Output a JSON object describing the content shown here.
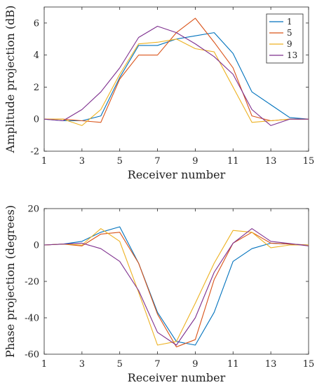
{
  "chart_data": [
    {
      "type": "line",
      "xlabel": "Receiver number",
      "ylabel": "Amplitude projection (dB)",
      "xlim": [
        1,
        15
      ],
      "ylim": [
        -2,
        7
      ],
      "xticks": [
        1,
        3,
        5,
        7,
        9,
        11,
        13,
        15
      ],
      "yticks": [
        -2,
        0,
        2,
        4,
        6
      ],
      "grid": false,
      "legend": "top-right",
      "x": [
        1,
        2,
        3,
        4,
        5,
        6,
        7,
        8,
        9,
        10,
        11,
        12,
        13,
        14,
        15
      ],
      "series": [
        {
          "name": "1",
          "color": "#0072BD",
          "values": [
            0,
            -0.1,
            -0.1,
            0.2,
            2.6,
            4.6,
            4.6,
            5.0,
            5.2,
            5.4,
            4.1,
            1.7,
            0.9,
            0.1,
            0
          ]
        },
        {
          "name": "5",
          "color": "#D95319",
          "values": [
            0,
            0,
            -0.1,
            -0.2,
            2.5,
            4.0,
            4.0,
            5.4,
            6.3,
            4.8,
            3.2,
            0.2,
            -0.1,
            0,
            0
          ]
        },
        {
          "name": "9",
          "color": "#EDB120",
          "values": [
            0,
            0,
            -0.4,
            0.6,
            2.8,
            4.7,
            4.8,
            5.0,
            4.4,
            4.2,
            2.0,
            -0.2,
            -0.1,
            0,
            0
          ]
        },
        {
          "name": "13",
          "color": "#7E2F8E",
          "values": [
            0,
            -0.1,
            0.6,
            1.7,
            3.2,
            5.1,
            5.8,
            5.4,
            4.7,
            3.9,
            2.8,
            0.6,
            -0.4,
            0,
            0
          ]
        }
      ]
    },
    {
      "type": "line",
      "xlabel": "Receiver number",
      "ylabel": "Phase projection (degrees)",
      "xlim": [
        1,
        15
      ],
      "ylim": [
        -60,
        20
      ],
      "xticks": [
        1,
        3,
        5,
        7,
        9,
        11,
        13,
        15
      ],
      "yticks": [
        -60,
        -40,
        -20,
        0,
        20
      ],
      "grid": false,
      "x": [
        1,
        2,
        3,
        4,
        5,
        6,
        7,
        8,
        9,
        10,
        11,
        12,
        13,
        14,
        15
      ],
      "series": [
        {
          "color": "#0072BD",
          "values": [
            0,
            0.5,
            2,
            7,
            10,
            -10,
            -37,
            -53,
            -55,
            -37,
            -9,
            -2,
            1,
            0.5,
            0
          ]
        },
        {
          "color": "#D95319",
          "values": [
            0,
            0.5,
            -0.5,
            6,
            7,
            -10,
            -38,
            -56,
            -52,
            -19,
            1,
            7,
            1,
            0.5,
            0
          ]
        },
        {
          "color": "#EDB120",
          "values": [
            0,
            0.5,
            0,
            9,
            2,
            -26,
            -55,
            -53,
            -32,
            -10,
            8,
            7,
            -1.5,
            0,
            0
          ]
        },
        {
          "color": "#7E2F8E",
          "values": [
            0,
            0.5,
            1,
            -2,
            -9,
            -25,
            -48,
            -55,
            -40,
            -15,
            1,
            9,
            2,
            0.8,
            -0.5
          ]
        }
      ]
    }
  ]
}
